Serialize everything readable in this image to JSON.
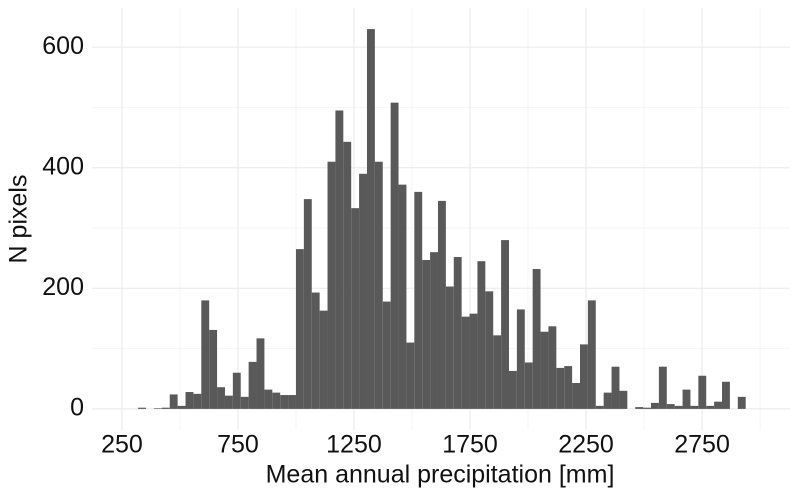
{
  "chart_data": {
    "type": "histogram",
    "x_label": "Mean annual precipitation [mm]",
    "y_label": "N pixels",
    "bins": [
      320,
      354,
      388,
      422,
      456,
      490,
      524,
      558,
      592,
      626,
      660,
      694,
      728,
      762,
      796,
      830,
      864,
      898,
      932,
      966,
      1000,
      1034,
      1068,
      1102,
      1136,
      1170,
      1204,
      1238,
      1272,
      1306,
      1340,
      1374,
      1408,
      1442,
      1476,
      1510,
      1544,
      1578,
      1612,
      1646,
      1680,
      1714,
      1748,
      1782,
      1816,
      1850,
      1884,
      1918,
      1952,
      1986,
      2020,
      2054,
      2088,
      2122,
      2156,
      2190,
      2224,
      2258,
      2292,
      2326,
      2360,
      2394,
      2428,
      2462,
      2496,
      2530,
      2564,
      2598,
      2632,
      2666,
      2700,
      2734,
      2768,
      2802,
      2836,
      2870,
      2904,
      2938
    ],
    "values": [
      2,
      0,
      1,
      2,
      24,
      5,
      28,
      25,
      180,
      131,
      36,
      22,
      60,
      20,
      78,
      117,
      32,
      27,
      23,
      23,
      265,
      348,
      193,
      163,
      410,
      495,
      443,
      333,
      390,
      630,
      410,
      178,
      508,
      372,
      110,
      360,
      247,
      260,
      345,
      203,
      252,
      153,
      158,
      245,
      195,
      122,
      280,
      63,
      165,
      77,
      232,
      128,
      137,
      68,
      71,
      43,
      107,
      180,
      5,
      27,
      70,
      30,
      0,
      3,
      2,
      10,
      70,
      8,
      5,
      32,
      5,
      55,
      5,
      12,
      45,
      0,
      20
    ],
    "color": "#595959",
    "xlim": [
      121,
      3129
    ],
    "ylim": [
      -35,
      665
    ],
    "xticks": [
      250,
      750,
      1250,
      1750,
      2250,
      2750
    ],
    "yticks": [
      0,
      200,
      400,
      600
    ],
    "xminor": [
      500,
      1000,
      1500,
      2000,
      2500,
      3000
    ],
    "yminor": [
      100,
      300,
      500
    ],
    "grid": true
  }
}
